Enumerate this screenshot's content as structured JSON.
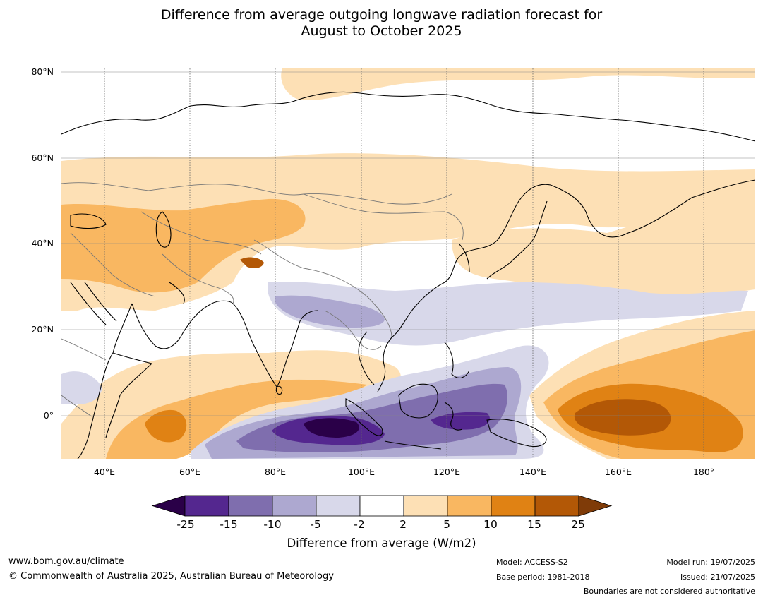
{
  "title": {
    "line1": "Difference from average outgoing longwave radiation forecast for",
    "line2": "August to October 2025"
  },
  "map": {
    "lat_labels": [
      "80°N",
      "60°N",
      "40°N",
      "20°N",
      "0°"
    ],
    "lon_labels": [
      "40°E",
      "60°E",
      "80°E",
      "100°E",
      "120°E",
      "140°E",
      "160°E",
      "180°"
    ],
    "extent_lon": [
      30,
      190
    ],
    "extent_lat": [
      -10,
      80
    ]
  },
  "legend": {
    "ticks": [
      "-25",
      "-15",
      "-10",
      "-5",
      "-2",
      "2",
      "5",
      "10",
      "15",
      "25"
    ],
    "colors": [
      "#2a0048",
      "#54278f",
      "#7f6eae",
      "#ada8d0",
      "#d8d8ea",
      "#ffffff",
      "#fde0b5",
      "#f9b761",
      "#e08214",
      "#b35806",
      "#7f3b08"
    ],
    "title": "Difference from average (W/m2)"
  },
  "footer": {
    "website": "www.bom.gov.au/climate",
    "copyright": "© Commonwealth of Australia 2025, Australian Bureau of Meteorology",
    "model": "Model: ACCESS-S2",
    "base_period": "Base period: 1981-2018",
    "model_run": "Model run: 19/07/2025",
    "issued": "Issued: 21/07/2025",
    "disclaimer": "Boundaries are not considered authoritative"
  }
}
